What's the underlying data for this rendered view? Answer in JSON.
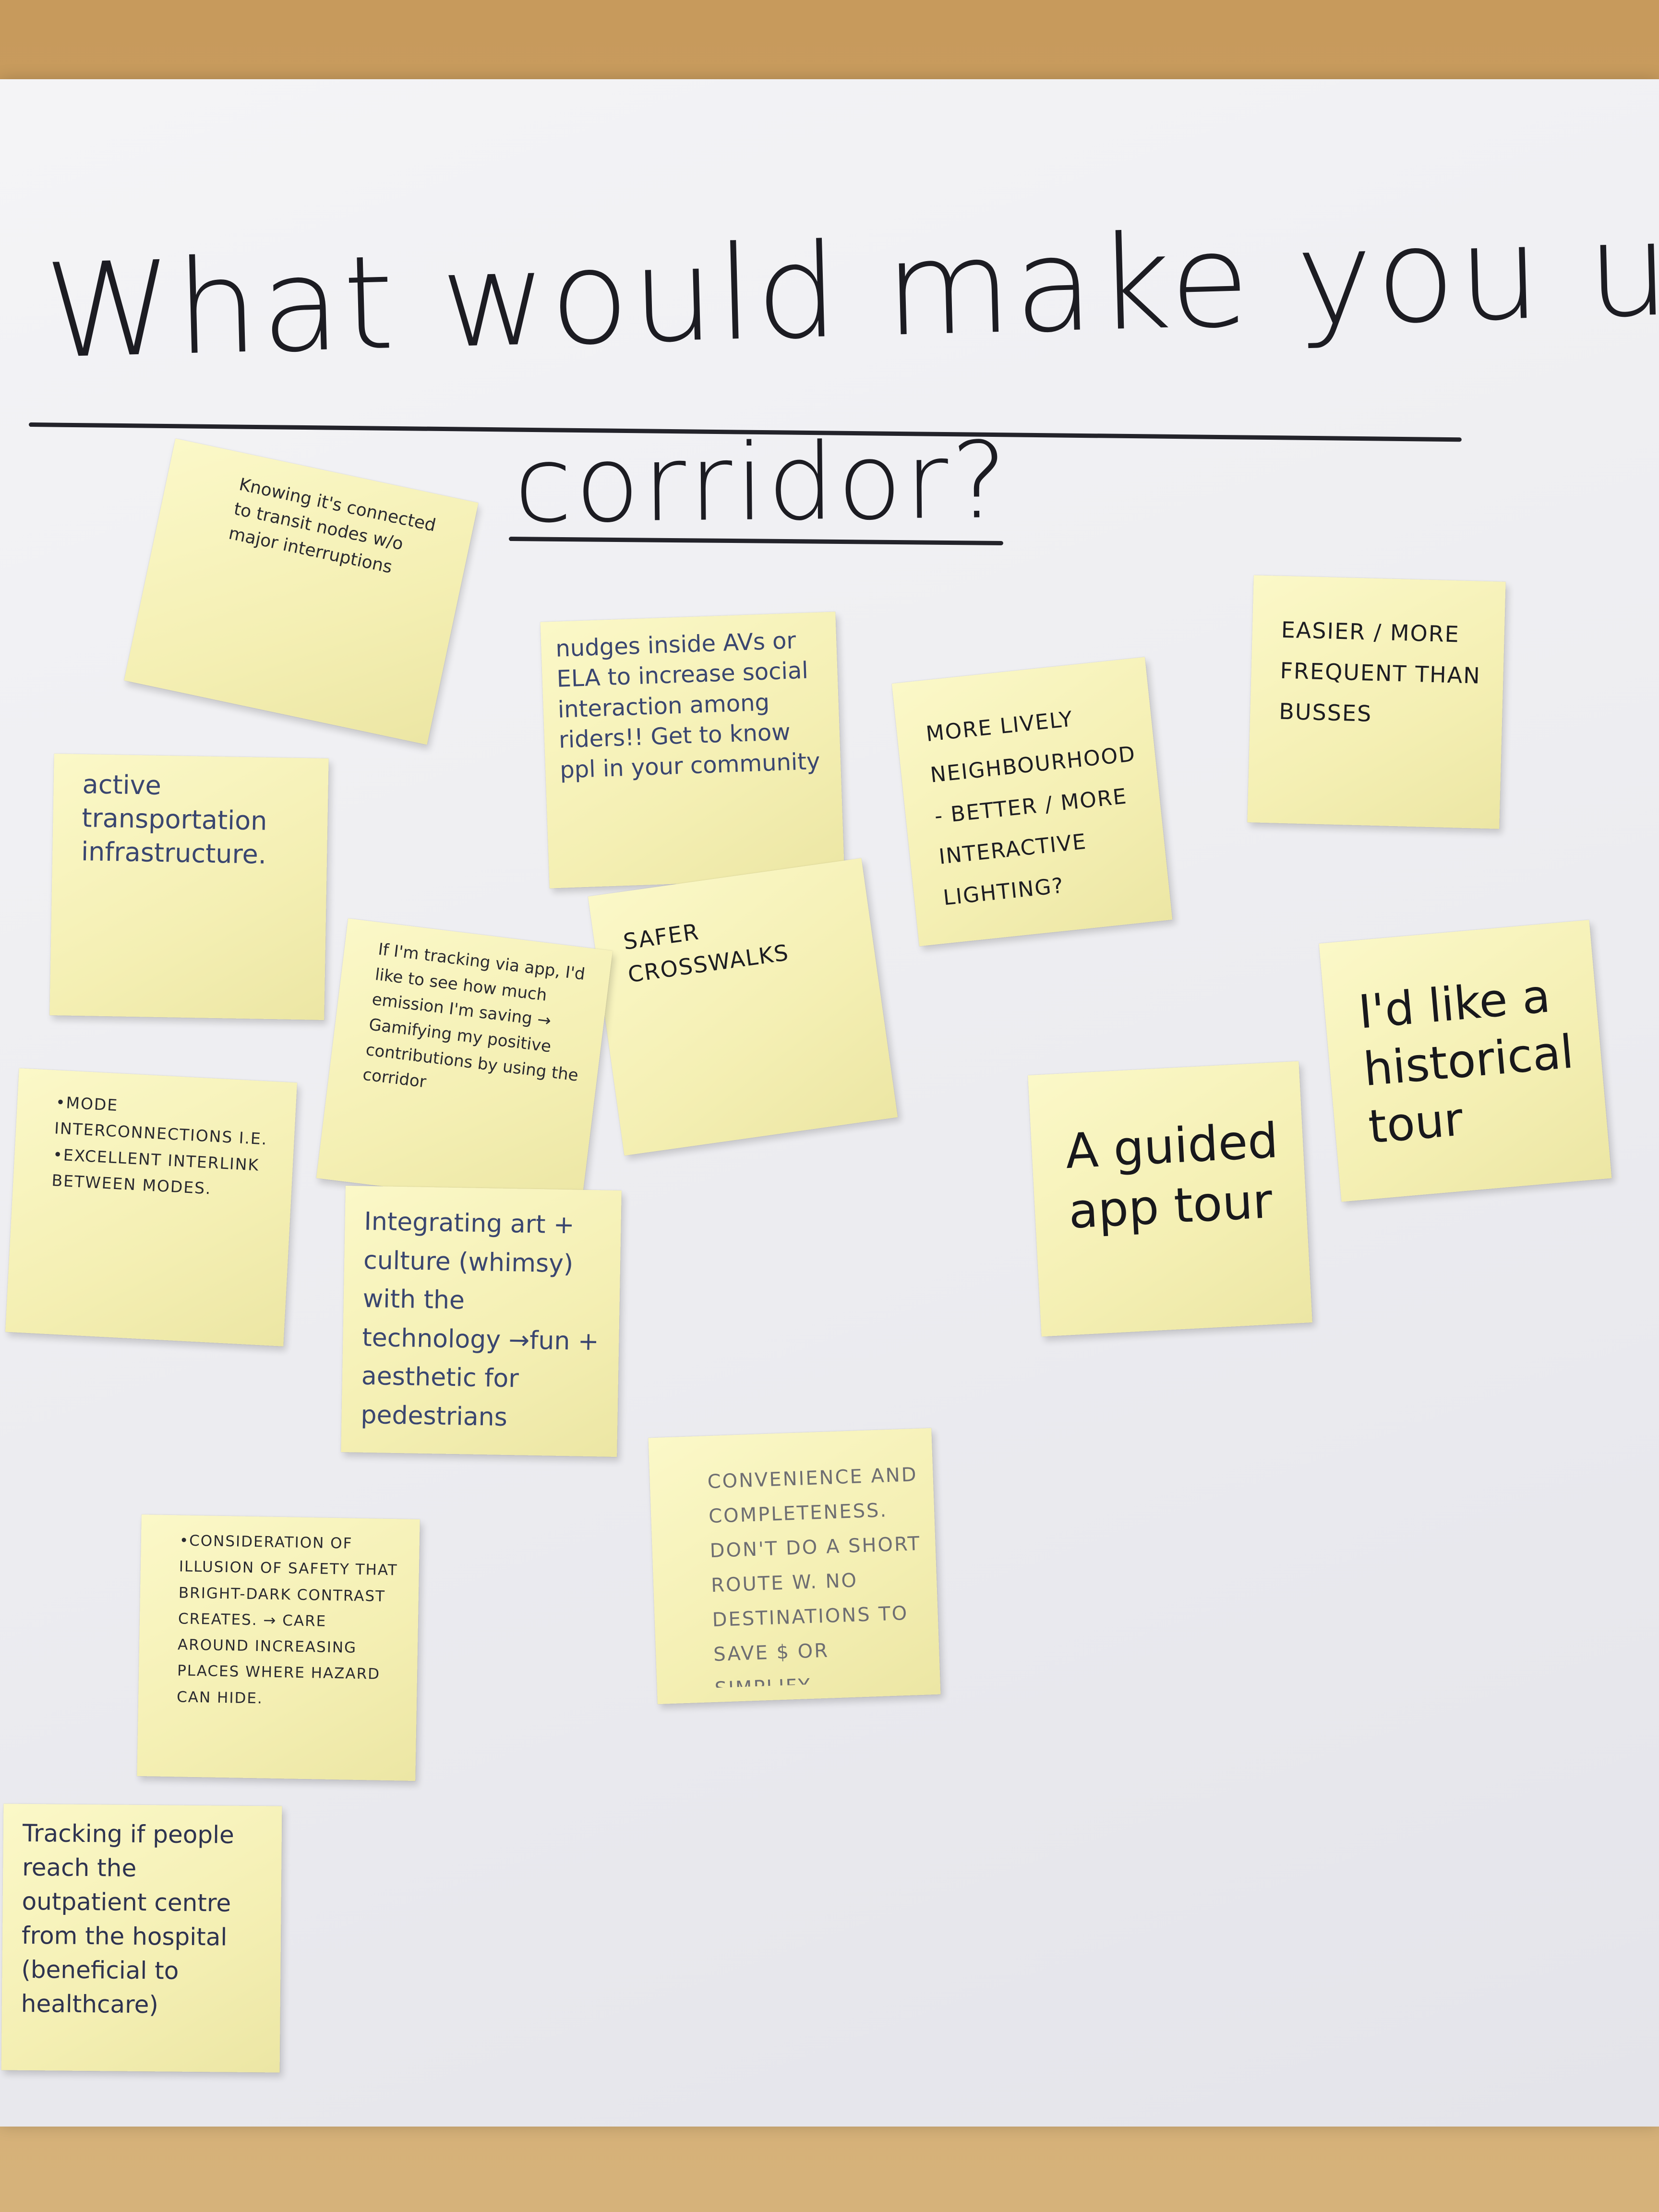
{
  "board": {
    "heading_line1": "What would make you use the",
    "heading_line2": "corridor?"
  },
  "notes": [
    {
      "text": "Knowing it's connected to transit nodes w/o major interruptions"
    },
    {
      "text": "active transportation infrastructure."
    },
    {
      "text": "nudges inside AVs or ELA to increase social interaction among riders!! Get to know ppl in your community"
    },
    {
      "text": "SAFER CROSSWALKS"
    },
    {
      "text": "MORE LIVELY NEIGHBOURHOOD - BETTER / MORE INTERACTIVE LIGHTING?"
    },
    {
      "text": "EASIER / MORE FREQUENT THAN BUSSES"
    },
    {
      "text": "If I'm tracking via app, I'd like to see how much emission I'm saving → Gamifying my positive contributions by using the corridor"
    },
    {
      "text": "•MODE INTERCONNECTIONS I.E. •EXCELLENT INTERLINK BETWEEN MODES."
    },
    {
      "text": "Integrating art + culture (whimsy) with the technology →fun + aesthetic for pedestrians"
    },
    {
      "text": "A guided app tour"
    },
    {
      "text": "I'd like a historical tour"
    },
    {
      "text": "CONVENIENCE AND COMPLETENESS. DON'T DO A SHORT ROUTE W. NO DESTINATIONS TO SAVE $ OR SIMPLIFY"
    },
    {
      "text": "•CONSIDERATION OF ILLUSION OF SAFETY THAT BRIGHT-DARK CONTRAST CREATES. → CARE AROUND INCREASING PLACES WHERE HAZARD CAN HIDE."
    },
    {
      "text": "Tracking if people reach the outpatient centre from the hospital (beneficial to healthcare)"
    }
  ]
}
